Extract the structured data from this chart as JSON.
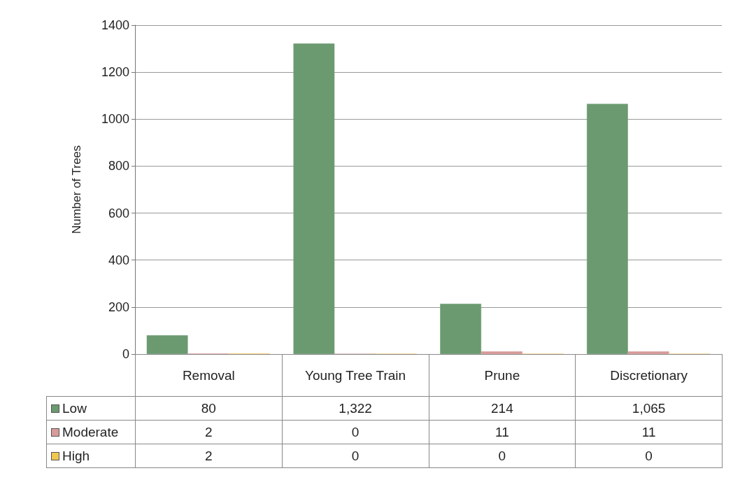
{
  "chart_data": {
    "type": "bar",
    "ylabel": "Number of Trees",
    "categories": [
      "Removal",
      "Young Tree Train",
      "Prune",
      "Discretionary"
    ],
    "series": [
      {
        "name": "Low",
        "color": "#6b9a70",
        "values": [
          80,
          1322,
          214,
          1065
        ],
        "value_labels": [
          "80",
          "1,322",
          "214",
          "1,065"
        ]
      },
      {
        "name": "Moderate",
        "color": "#d99a9a",
        "values": [
          2,
          0,
          11,
          11
        ],
        "value_labels": [
          "2",
          "0",
          "11",
          "11"
        ]
      },
      {
        "name": "High",
        "color": "#f0c850",
        "values": [
          2,
          0,
          0,
          0
        ],
        "value_labels": [
          "2",
          "0",
          "0",
          "0"
        ]
      }
    ],
    "ylim": [
      0,
      1400
    ],
    "yticks": [
      0,
      200,
      400,
      600,
      800,
      1000,
      1200,
      1400
    ],
    "grid": "y",
    "legend": "bottom left"
  }
}
